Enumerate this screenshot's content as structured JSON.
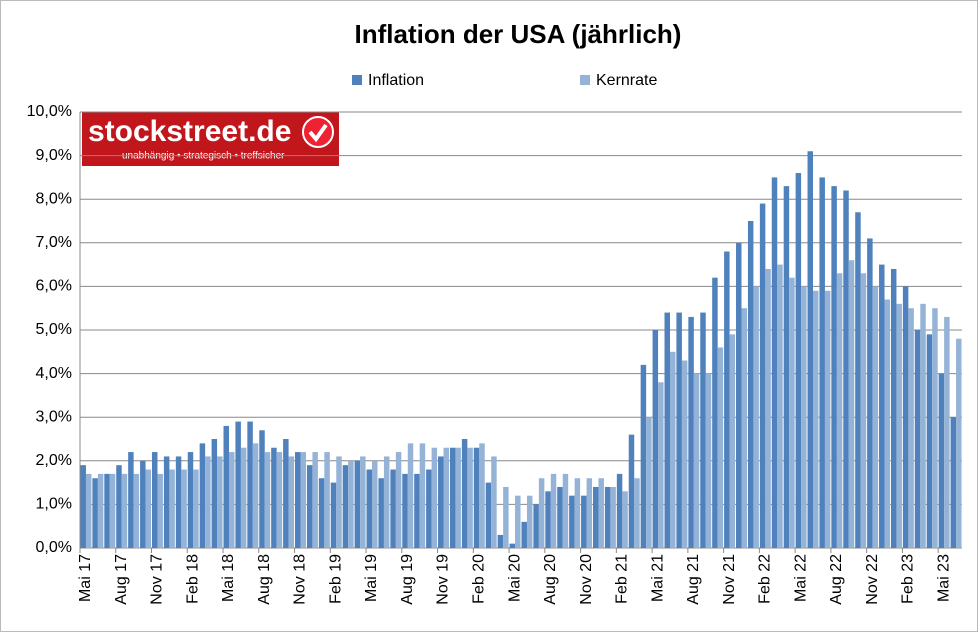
{
  "chart_data": {
    "type": "bar",
    "title": "Inflation der USA (jährlich)",
    "logo": {
      "name": "stockstreet.de",
      "slogan": "unabhängig • strategisch • treffsicher"
    },
    "categories": [
      "Mai 17",
      null,
      null,
      "Aug 17",
      null,
      null,
      "Nov 17",
      null,
      null,
      "Feb 18",
      null,
      null,
      "Mai 18",
      null,
      null,
      "Aug 18",
      null,
      null,
      "Nov 18",
      null,
      null,
      "Feb 19",
      null,
      null,
      "Mai 19",
      null,
      null,
      "Aug 19",
      null,
      null,
      "Nov 19",
      null,
      null,
      "Feb 20",
      null,
      null,
      "Mai 20",
      null,
      null,
      "Aug 20",
      null,
      null,
      "Nov 20",
      null,
      null,
      "Feb 21",
      null,
      null,
      "Mai 21",
      null,
      null,
      "Aug 21",
      null,
      null,
      "Nov 21",
      null,
      null,
      "Feb 22",
      null,
      null,
      "Mai 22",
      null,
      null,
      "Aug 22",
      null,
      null,
      "Nov 22",
      null,
      null,
      "Feb 23",
      null,
      null,
      "Mai 23",
      null
    ],
    "series": [
      {
        "name": "Inflation",
        "color": "#4f81bd",
        "values": [
          1.9,
          1.6,
          1.7,
          1.9,
          2.2,
          2.0,
          2.2,
          2.1,
          2.1,
          2.2,
          2.4,
          2.5,
          2.8,
          2.9,
          2.9,
          2.7,
          2.3,
          2.5,
          2.2,
          1.9,
          1.6,
          1.5,
          1.9,
          2.0,
          1.8,
          1.6,
          1.8,
          1.7,
          1.7,
          1.8,
          2.1,
          2.3,
          2.5,
          2.3,
          1.5,
          0.3,
          0.1,
          0.6,
          1.0,
          1.3,
          1.4,
          1.2,
          1.2,
          1.4,
          1.4,
          1.7,
          2.6,
          4.2,
          5.0,
          5.4,
          5.4,
          5.3,
          5.4,
          6.2,
          6.8,
          7.0,
          7.5,
          7.9,
          8.5,
          8.3,
          8.6,
          9.1,
          8.5,
          8.3,
          8.2,
          7.7,
          7.1,
          6.5,
          6.4,
          6.0,
          5.0,
          4.9,
          4.0,
          3.0
        ]
      },
      {
        "name": "Kernrate",
        "color": "#95b3d7",
        "values": [
          1.7,
          1.7,
          1.7,
          1.7,
          1.7,
          1.8,
          1.7,
          1.8,
          1.8,
          1.8,
          2.1,
          2.1,
          2.2,
          2.3,
          2.4,
          2.2,
          2.2,
          2.1,
          2.2,
          2.2,
          2.2,
          2.1,
          2.0,
          2.1,
          2.0,
          2.1,
          2.2,
          2.4,
          2.4,
          2.3,
          2.3,
          2.3,
          2.3,
          2.4,
          2.1,
          1.4,
          1.2,
          1.2,
          1.6,
          1.7,
          1.7,
          1.6,
          1.6,
          1.6,
          1.4,
          1.3,
          1.6,
          3.0,
          3.8,
          4.5,
          4.3,
          4.0,
          4.0,
          4.6,
          4.9,
          5.5,
          6.0,
          6.4,
          6.5,
          6.2,
          6.0,
          5.9,
          5.9,
          6.3,
          6.6,
          6.3,
          6.0,
          5.7,
          5.6,
          5.5,
          5.6,
          5.5,
          5.3,
          4.8
        ]
      }
    ],
    "ylim": [
      0,
      10
    ],
    "yticks": [
      {
        "value": 0,
        "label": "0,0%"
      },
      {
        "value": 1,
        "label": "1,0%"
      },
      {
        "value": 2,
        "label": "2,0%"
      },
      {
        "value": 3,
        "label": "3,0%"
      },
      {
        "value": 4,
        "label": "4,0%"
      },
      {
        "value": 5,
        "label": "5,0%"
      },
      {
        "value": 6,
        "label": "6,0%"
      },
      {
        "value": 7,
        "label": "7,0%"
      },
      {
        "value": 8,
        "label": "8,0%"
      },
      {
        "value": 9,
        "label": "9,0%"
      },
      {
        "value": 10,
        "label": "10,0%"
      }
    ],
    "grid": true,
    "legend": "top"
  }
}
